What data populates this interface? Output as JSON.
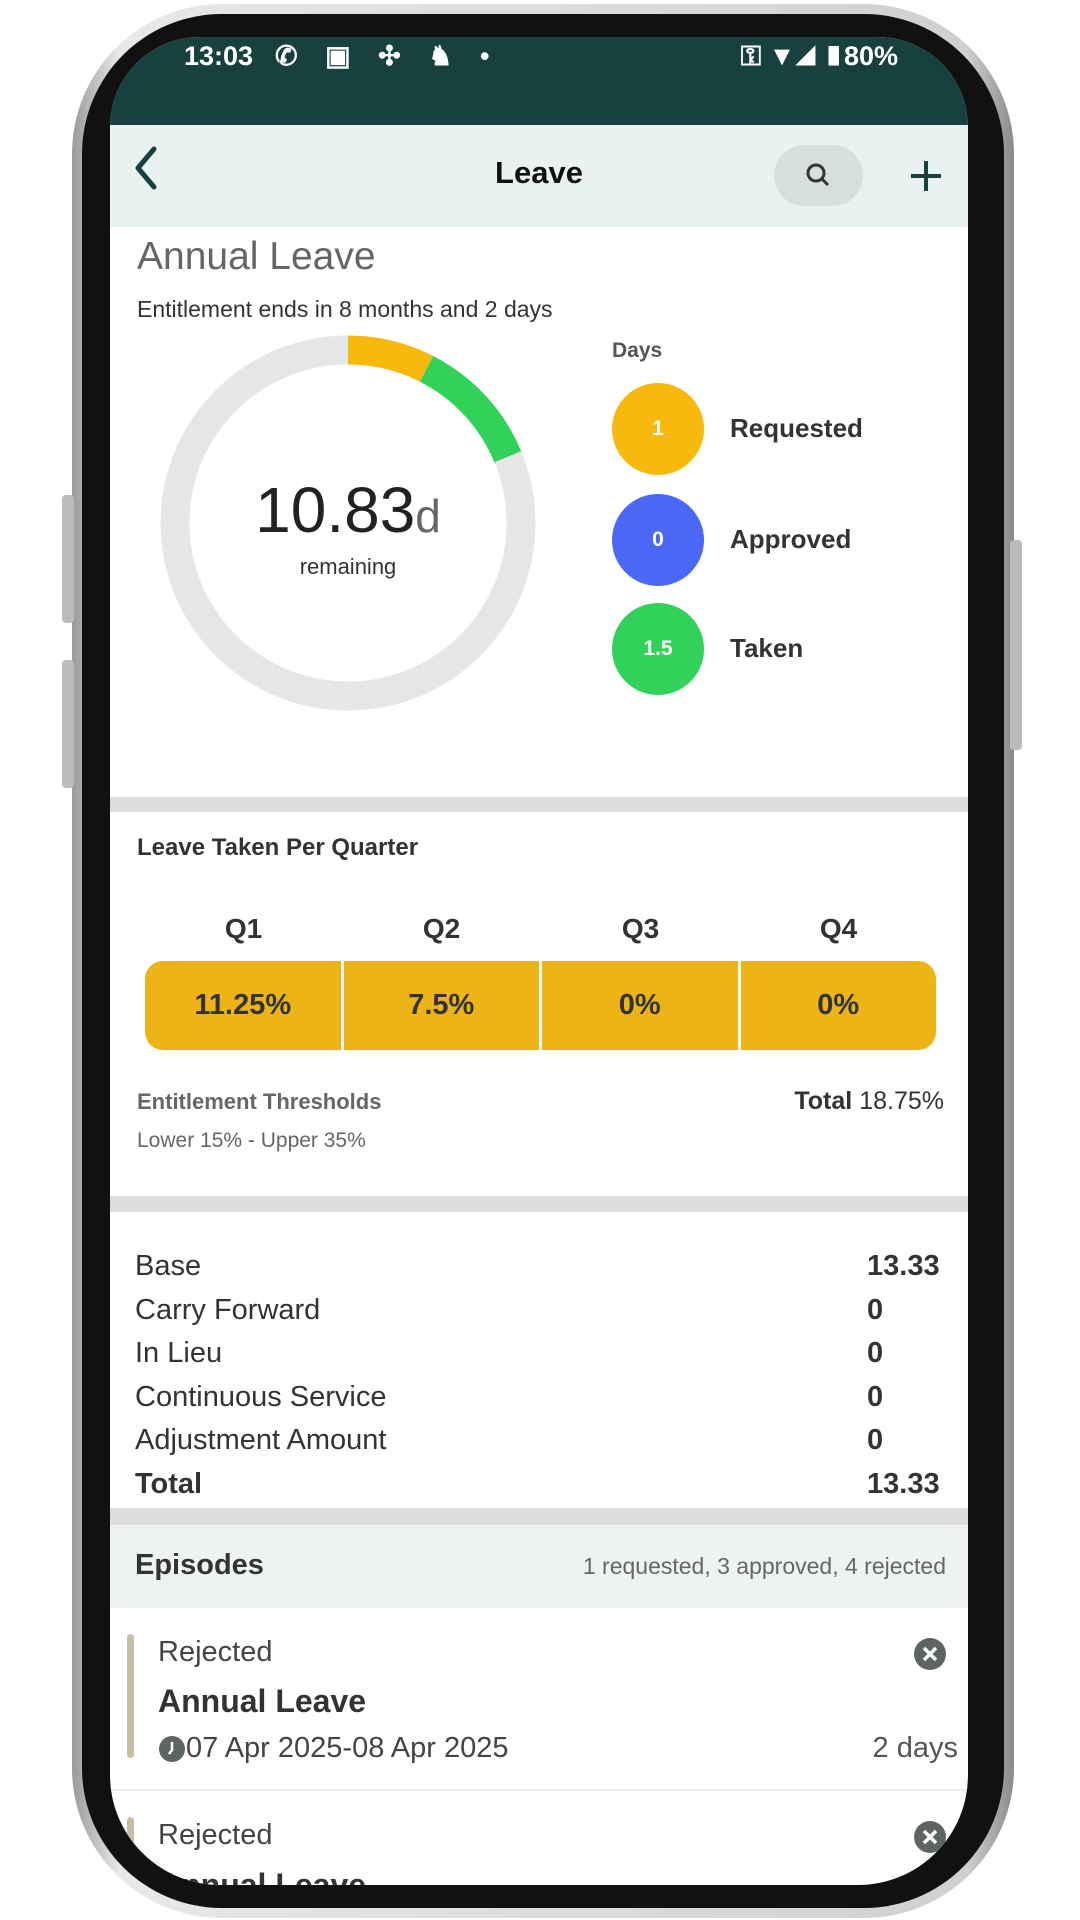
{
  "status_bar": {
    "time": "13:03",
    "battery": "80%"
  },
  "header": {
    "title": "Leave",
    "back_icon": "chevron-left-icon",
    "search_icon": "search-icon",
    "add_icon": "plus-icon"
  },
  "summary": {
    "title": "Annual Leave",
    "entitlement_text": "Entitlement ends in 8 months and 2 days",
    "remaining_value": "10.83",
    "remaining_unit": "d",
    "remaining_label": "remaining",
    "days_label": "Days",
    "legend": [
      {
        "value": "1",
        "label": "Requested",
        "color": "#f8b90f"
      },
      {
        "value": "0",
        "label": "Approved",
        "color": "#4a68f5"
      },
      {
        "value": "1.5",
        "label": "Taken",
        "color": "#32d159"
      }
    ]
  },
  "chart_data": {
    "type": "pie",
    "total": 13.33,
    "series": [
      {
        "name": "Requested",
        "value": 1
      },
      {
        "name": "Approved",
        "value": 0
      },
      {
        "name": "Taken",
        "value": 1.5
      },
      {
        "name": "remaining",
        "value": 10.83
      }
    ],
    "colors": [
      "#f8b90f",
      "#4a68f5",
      "#32d159",
      "#e6e6e6"
    ]
  },
  "quarters": {
    "title": "Leave Taken Per Quarter",
    "items": [
      {
        "label": "Q1",
        "value": "11.25%"
      },
      {
        "label": "Q2",
        "value": "7.5%"
      },
      {
        "label": "Q3",
        "value": "0%"
      },
      {
        "label": "Q4",
        "value": "0%"
      }
    ],
    "thresholds_title": "Entitlement Thresholds",
    "thresholds_text": "Lower 15% - Upper 35%",
    "total_label": "Total",
    "total_value": "18.75%"
  },
  "breakdown": [
    {
      "label": "Base",
      "value": "13.33"
    },
    {
      "label": "Carry Forward",
      "value": "0"
    },
    {
      "label": "In Lieu",
      "value": "0"
    },
    {
      "label": "Continuous Service",
      "value": "0"
    },
    {
      "label": "Adjustment Amount",
      "value": "0"
    },
    {
      "label": "Total",
      "value": "13.33"
    }
  ],
  "episodes": {
    "title": "Episodes",
    "summary": "1 requested, 3 approved, 4 rejected",
    "items": [
      {
        "status": "Rejected",
        "type": "Annual Leave",
        "dates": "07 Apr 2025-08 Apr 2025",
        "duration": "2 days"
      },
      {
        "status": "Rejected",
        "type": "Annual Leave"
      }
    ]
  }
}
